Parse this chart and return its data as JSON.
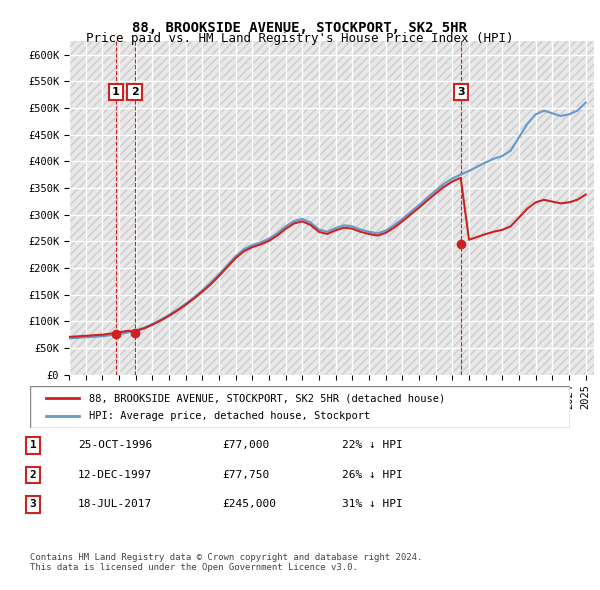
{
  "title": "88, BROOKSIDE AVENUE, STOCKPORT, SK2 5HR",
  "subtitle": "Price paid vs. HM Land Registry's House Price Index (HPI)",
  "ylabel": "",
  "ylim": [
    0,
    625000
  ],
  "yticks": [
    0,
    50000,
    100000,
    150000,
    200000,
    250000,
    300000,
    350000,
    400000,
    450000,
    500000,
    550000,
    600000
  ],
  "ytick_labels": [
    "£0",
    "£50K",
    "£100K",
    "£150K",
    "£200K",
    "£250K",
    "£300K",
    "£350K",
    "£400K",
    "£450K",
    "£500K",
    "£550K",
    "£600K"
  ],
  "sale_dates": [
    1996.81,
    1997.94,
    2017.54
  ],
  "sale_prices": [
    77000,
    77750,
    245000
  ],
  "sale_labels": [
    "1",
    "2",
    "3"
  ],
  "hpi_color": "#6699cc",
  "sale_color": "#cc2222",
  "sale_dot_color": "#cc2222",
  "background_color": "#f0f0f0",
  "grid_color": "#ffffff",
  "legend_items": [
    "88, BROOKSIDE AVENUE, STOCKPORT, SK2 5HR (detached house)",
    "HPI: Average price, detached house, Stockport"
  ],
  "table_rows": [
    [
      "1",
      "25-OCT-1996",
      "£77,000",
      "22% ↓ HPI"
    ],
    [
      "2",
      "12-DEC-1997",
      "£77,750",
      "26% ↓ HPI"
    ],
    [
      "3",
      "18-JUL-2017",
      "£245,000",
      "31% ↓ HPI"
    ]
  ],
  "footer": "Contains HM Land Registry data © Crown copyright and database right 2024.\nThis data is licensed under the Open Government Licence v3.0.",
  "title_fontsize": 10,
  "subtitle_fontsize": 9,
  "axis_fontsize": 8,
  "tick_fontsize": 7.5
}
